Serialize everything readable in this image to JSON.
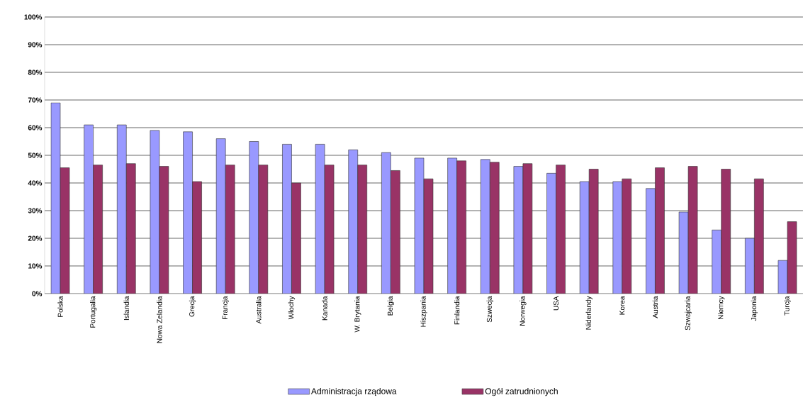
{
  "chart_data": {
    "type": "bar",
    "categories": [
      "Polska",
      "Portugalia",
      "Islandia",
      "Nowa Zelandia",
      "Grecja",
      "Francja",
      "Australia",
      "Włochy",
      "Kanada",
      "W. Brytania",
      "Belgia",
      "Hiszpania",
      "Finlandia",
      "Szwecja",
      "Norwegia",
      "USA",
      "Niderlandy",
      "Korea",
      "Austria",
      "Szwajcaria",
      "Niemcy",
      "Japonia",
      "Turcja"
    ],
    "series": [
      {
        "name": "Administracja rządowa",
        "color": "#9999ff",
        "values": [
          69,
          61,
          61,
          59,
          58.5,
          56,
          55,
          54,
          54,
          52,
          51,
          49,
          49,
          48.5,
          46,
          43.5,
          40.5,
          40.5,
          38,
          29.5,
          23,
          20,
          12
        ]
      },
      {
        "name": "Ogół zatrudnionych",
        "color": "#993366",
        "values": [
          45.5,
          46.5,
          47,
          46,
          40.5,
          46.5,
          46.5,
          40,
          46.5,
          46.5,
          44.5,
          41.5,
          48,
          47.5,
          47,
          46.5,
          45,
          41.5,
          45.5,
          46,
          45,
          41.5,
          26
        ]
      }
    ],
    "ylim": [
      0,
      100
    ],
    "yticks": [
      {
        "value": 0,
        "label": "0%"
      },
      {
        "value": 10,
        "label": "10%"
      },
      {
        "value": 20,
        "label": "20%"
      },
      {
        "value": 30,
        "label": "30%"
      },
      {
        "value": 40,
        "label": "40%"
      },
      {
        "value": 50,
        "label": "50%"
      },
      {
        "value": 60,
        "label": "60%"
      },
      {
        "value": 70,
        "label": "70%"
      },
      {
        "value": 80,
        "label": "80%"
      },
      {
        "value": 90,
        "label": "90%"
      },
      {
        "value": 100,
        "label": "100%"
      }
    ],
    "grid": "y",
    "legend": "bottom"
  }
}
